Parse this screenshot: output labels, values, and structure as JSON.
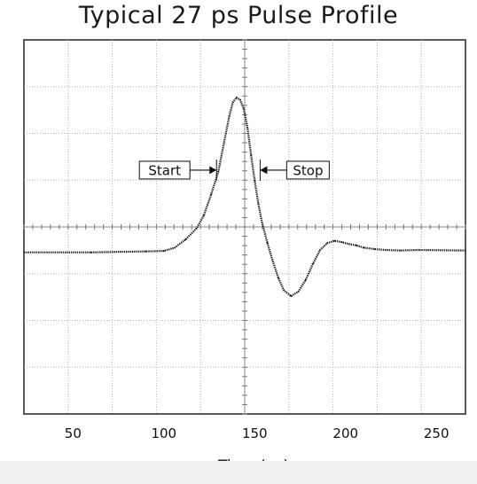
{
  "chart_data": {
    "type": "line",
    "title": "Typical 27 ps Pulse Profile",
    "xlabel": "Time (ps)",
    "ylabel": "",
    "xlim": [
      23,
      266
    ],
    "ylim": [
      -5.5,
      2.6
    ],
    "xticks": [
      50,
      100,
      150,
      200,
      250
    ],
    "grid": true,
    "legend": "none",
    "trace_color": "#222222",
    "series": [
      {
        "x": [
          23,
          60,
          90,
          100,
          106,
          112,
          118,
          122,
          126,
          130,
          133,
          136,
          138,
          140,
          142,
          144,
          146,
          148,
          150,
          152,
          154,
          157,
          160,
          163,
          166,
          170,
          174,
          178,
          182,
          186,
          190,
          194,
          198,
          202,
          206,
          210,
          216,
          222,
          230,
          240,
          266
        ],
        "y": [
          -2.0,
          -2.0,
          -1.98,
          -1.97,
          -1.9,
          -1.72,
          -1.48,
          -1.2,
          -0.75,
          -0.25,
          0.35,
          0.95,
          1.25,
          1.35,
          1.3,
          1.1,
          0.7,
          0.1,
          -0.45,
          -0.95,
          -1.35,
          -1.8,
          -2.2,
          -2.55,
          -2.82,
          -2.95,
          -2.85,
          -2.6,
          -2.25,
          -1.95,
          -1.8,
          -1.75,
          -1.78,
          -1.82,
          -1.85,
          -1.9,
          -1.93,
          -1.95,
          -1.96,
          -1.95,
          -1.96
        ]
      }
    ],
    "annotations": [
      {
        "label": "Start",
        "x": 129,
        "y": -0.22,
        "direction": "right"
      },
      {
        "label": "Stop",
        "x": 153,
        "y": -0.22,
        "direction": "left"
      }
    ]
  }
}
